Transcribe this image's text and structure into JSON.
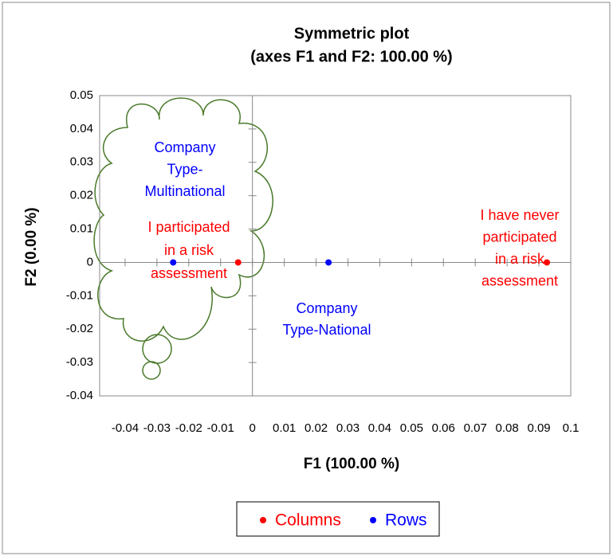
{
  "chart_data": {
    "type": "scatter",
    "title": "Symmetric plot",
    "subtitle": "(axes F1 and F2: 100.00 %)",
    "x_label": "F1 (100.00 %)",
    "y_label": "F2 (0.00 %)",
    "xlim": [
      -0.048,
      0.1
    ],
    "ylim": [
      -0.04,
      0.05
    ],
    "xticks": [
      -0.04,
      -0.03,
      -0.02,
      -0.01,
      0,
      0.01,
      0.02,
      0.03,
      0.04,
      0.05,
      0.06,
      0.07,
      0.08,
      0.09,
      0.1
    ],
    "yticks": [
      -0.04,
      -0.03,
      -0.02,
      -0.01,
      0,
      0.01,
      0.02,
      0.03,
      0.04,
      0.05
    ],
    "grid": false,
    "legend": "bottom",
    "series": [
      {
        "name": "Columns",
        "color": "#ff0000",
        "x": [
          -0.0045,
          0.0925
        ],
        "values": [
          0,
          0
        ],
        "labels": [
          [
            "I participated",
            "in a risk",
            "assessment"
          ],
          [
            "I have never",
            "participated",
            "in a risk",
            "assessment"
          ]
        ]
      },
      {
        "name": "Rows",
        "color": "#0000ff",
        "x": [
          -0.0249,
          0.0239
        ],
        "values": [
          0,
          0
        ],
        "labels": [
          [
            "Company",
            "Type-",
            "Multinational"
          ],
          [
            "Company",
            "Type-National"
          ]
        ]
      }
    ]
  }
}
